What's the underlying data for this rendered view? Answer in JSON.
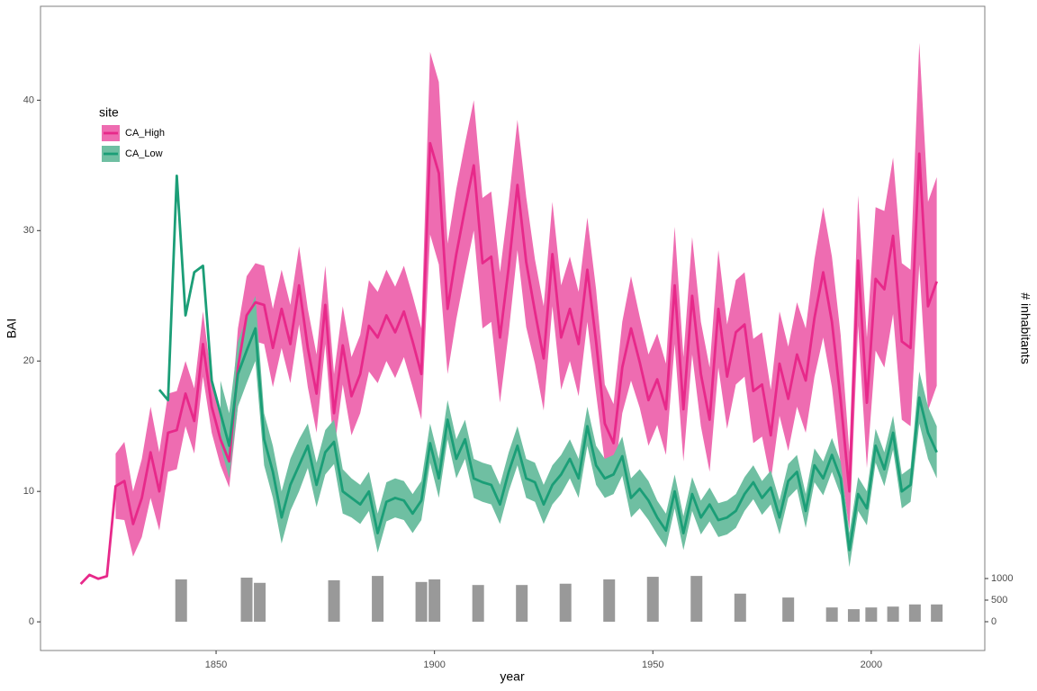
{
  "chart_data": {
    "type": "line",
    "x_label": "year",
    "y_label": "BAI",
    "y2_label": "# inhabitants",
    "legend_title": "site",
    "legend_position": "top-left",
    "grid": false,
    "xlim": [
      1809.8,
      2026
    ],
    "xticks": [
      1850,
      1900,
      1950,
      2000
    ],
    "ylim": [
      -2.2,
      47.2
    ],
    "yticks": [
      0,
      10,
      20,
      30,
      40
    ],
    "y2lim": [
      -667,
      14250
    ],
    "y2ticks": [
      0,
      500,
      1000
    ],
    "x": [
      1819,
      1821,
      1823,
      1825,
      1827,
      1829,
      1831,
      1833,
      1835,
      1837,
      1839,
      1841,
      1843,
      1845,
      1847,
      1849,
      1851,
      1853,
      1855,
      1857,
      1859,
      1861,
      1863,
      1865,
      1867,
      1869,
      1871,
      1873,
      1875,
      1877,
      1879,
      1881,
      1883,
      1885,
      1887,
      1889,
      1891,
      1893,
      1895,
      1897,
      1899,
      1901,
      1903,
      1905,
      1907,
      1909,
      1911,
      1913,
      1915,
      1917,
      1919,
      1921,
      1923,
      1925,
      1927,
      1929,
      1931,
      1933,
      1935,
      1937,
      1939,
      1941,
      1943,
      1945,
      1947,
      1949,
      1951,
      1953,
      1955,
      1957,
      1959,
      1961,
      1963,
      1965,
      1967,
      1969,
      1971,
      1973,
      1975,
      1977,
      1979,
      1981,
      1983,
      1985,
      1987,
      1989,
      1991,
      1993,
      1995,
      1997,
      1999,
      2001,
      2003,
      2005,
      2007,
      2009,
      2011,
      2013,
      2015
    ],
    "series": [
      {
        "name": "CA_High",
        "color": "#e7298a",
        "ribbon_color": "#ee6cb1",
        "values": [
          2.9,
          3.6,
          3.3,
          3.5,
          10.4,
          10.8,
          7.5,
          9.5,
          13.0,
          10.0,
          14.5,
          14.7,
          17.5,
          15.4,
          21.3,
          16.5,
          14.0,
          12.3,
          19.5,
          23.5,
          24.5,
          24.3,
          21.0,
          24.0,
          21.3,
          25.8,
          21.0,
          17.5,
          24.3,
          16.0,
          21.2,
          17.3,
          19.0,
          22.7,
          21.8,
          23.5,
          22.2,
          23.8,
          21.5,
          19.0,
          36.7,
          34.4,
          24.0,
          28.2,
          31.7,
          35.0,
          27.5,
          28.0,
          21.8,
          27.2,
          33.5,
          27.6,
          23.8,
          20.2,
          28.2,
          21.8,
          24.0,
          21.3,
          27.0,
          21.5,
          15.2,
          13.7,
          19.5,
          22.5,
          19.9,
          17.0,
          18.6,
          16.3,
          25.8,
          16.3,
          25.0,
          19.0,
          15.5,
          24.0,
          18.8,
          22.2,
          22.8,
          17.7,
          18.2,
          14.3,
          19.8,
          17.1,
          20.5,
          18.5,
          23.3,
          26.8,
          23.0,
          17.0,
          10.0,
          27.7,
          16.8,
          26.3,
          25.5,
          29.6,
          21.5,
          21.0,
          35.9,
          24.2,
          26.1
        ],
        "lower": [
          null,
          null,
          null,
          null,
          7.9,
          7.8,
          5.0,
          6.5,
          9.5,
          7.0,
          11.5,
          11.7,
          15.0,
          12.9,
          18.8,
          14.5,
          12.0,
          10.3,
          16.5,
          20.5,
          21.5,
          21.3,
          18.0,
          21.0,
          18.3,
          22.8,
          18.0,
          14.5,
          21.3,
          13.0,
          18.2,
          14.3,
          16.0,
          19.2,
          18.3,
          20.0,
          18.7,
          20.3,
          18.0,
          15.5,
          29.7,
          27.4,
          19.0,
          23.2,
          26.7,
          30.0,
          22.5,
          23.0,
          16.8,
          22.2,
          28.5,
          22.6,
          19.8,
          16.2,
          24.2,
          17.8,
          20.0,
          17.3,
          23.0,
          17.5,
          12.2,
          10.7,
          16.0,
          18.5,
          16.4,
          13.5,
          15.1,
          12.8,
          21.3,
          12.3,
          20.5,
          15.0,
          11.5,
          19.5,
          14.8,
          18.2,
          18.8,
          13.7,
          14.2,
          10.8,
          15.8,
          13.1,
          16.5,
          14.5,
          18.8,
          21.8,
          18.0,
          12.0,
          7.0,
          22.7,
          11.8,
          20.8,
          19.5,
          23.6,
          15.5,
          15.0,
          27.4,
          16.2,
          18.1
        ],
        "upper": [
          null,
          null,
          null,
          null,
          12.9,
          13.8,
          10.0,
          12.5,
          16.5,
          13.0,
          17.5,
          17.7,
          20.0,
          17.9,
          23.8,
          18.5,
          16.0,
          14.3,
          22.5,
          26.5,
          27.5,
          27.3,
          24.0,
          27.0,
          24.3,
          28.8,
          24.0,
          20.5,
          27.3,
          19.0,
          24.2,
          20.3,
          22.0,
          26.2,
          25.3,
          27.0,
          25.7,
          27.3,
          25.0,
          22.5,
          43.7,
          41.4,
          29.0,
          33.2,
          36.7,
          40.0,
          32.5,
          33.0,
          26.8,
          32.2,
          38.5,
          32.6,
          27.8,
          24.2,
          32.2,
          25.8,
          28.0,
          25.3,
          31.0,
          25.5,
          18.2,
          16.7,
          23.0,
          26.5,
          23.4,
          20.5,
          22.1,
          19.8,
          30.3,
          20.3,
          29.5,
          23.0,
          19.5,
          28.5,
          22.8,
          26.2,
          26.8,
          21.7,
          22.2,
          17.8,
          23.8,
          21.1,
          24.5,
          22.5,
          27.8,
          31.8,
          28.0,
          22.0,
          13.0,
          32.7,
          21.8,
          31.8,
          31.5,
          35.6,
          27.5,
          27.0,
          44.4,
          32.2,
          34.1
        ]
      },
      {
        "name": "CA_Low",
        "color": "#1b9e77",
        "ribbon_color": "#6fbfa2",
        "values": [
          null,
          null,
          null,
          null,
          null,
          null,
          null,
          null,
          null,
          17.8,
          17.0,
          34.2,
          23.5,
          26.8,
          27.3,
          18.5,
          16.0,
          13.5,
          19.0,
          20.8,
          22.5,
          14.0,
          11.5,
          8.0,
          10.5,
          12.0,
          13.5,
          10.5,
          13.0,
          13.8,
          10.0,
          9.5,
          9.0,
          10.0,
          6.8,
          9.2,
          9.5,
          9.3,
          8.3,
          9.3,
          13.7,
          11.0,
          15.5,
          12.5,
          14.0,
          11.0,
          10.7,
          10.5,
          9.0,
          11.5,
          13.5,
          11.0,
          10.7,
          9.0,
          10.5,
          11.3,
          12.5,
          11.0,
          15.0,
          12.0,
          11.0,
          11.3,
          12.7,
          9.5,
          10.2,
          9.3,
          8.0,
          7.0,
          10.0,
          6.8,
          9.8,
          8.0,
          9.0,
          7.8,
          8.0,
          8.5,
          9.8,
          10.7,
          9.5,
          10.3,
          8.0,
          10.8,
          11.5,
          8.5,
          12.0,
          11.0,
          12.8,
          11.0,
          5.5,
          9.8,
          8.7,
          13.5,
          11.7,
          14.5,
          10.0,
          10.5,
          17.2,
          14.5,
          13.0
        ],
        "lower": [
          null,
          null,
          null,
          null,
          null,
          null,
          null,
          null,
          null,
          null,
          null,
          null,
          null,
          null,
          null,
          null,
          13.5,
          11.0,
          16.5,
          18.3,
          20.0,
          12.0,
          9.5,
          6.0,
          8.5,
          10.0,
          11.8,
          8.8,
          11.3,
          12.1,
          8.3,
          8.0,
          7.5,
          8.5,
          5.3,
          7.7,
          8.0,
          7.8,
          6.8,
          7.8,
          12.2,
          9.5,
          14.0,
          11.0,
          12.5,
          9.5,
          9.2,
          9.0,
          7.5,
          10.0,
          12.0,
          9.5,
          9.2,
          7.5,
          9.0,
          9.8,
          11.0,
          9.5,
          13.5,
          10.5,
          9.5,
          9.8,
          11.2,
          8.0,
          8.7,
          7.8,
          6.7,
          5.7,
          8.7,
          5.5,
          8.5,
          6.7,
          7.7,
          6.5,
          6.7,
          7.2,
          8.5,
          9.4,
          8.2,
          9.0,
          6.7,
          9.5,
          10.2,
          7.2,
          10.7,
          9.7,
          11.5,
          9.7,
          4.2,
          8.5,
          7.4,
          12.2,
          10.4,
          13.2,
          8.7,
          9.2,
          15.2,
          12.5,
          11.0
        ],
        "upper": [
          null,
          null,
          null,
          null,
          null,
          null,
          null,
          null,
          null,
          null,
          null,
          null,
          null,
          null,
          null,
          null,
          18.5,
          16.0,
          21.5,
          23.3,
          25.0,
          16.0,
          13.5,
          10.0,
          12.5,
          14.0,
          15.2,
          12.2,
          14.7,
          15.5,
          11.7,
          11.0,
          10.5,
          11.5,
          8.3,
          10.7,
          11.0,
          10.8,
          9.8,
          10.8,
          15.2,
          12.5,
          17.0,
          14.0,
          15.5,
          12.5,
          12.2,
          12.0,
          10.5,
          13.0,
          15.0,
          12.5,
          12.2,
          10.5,
          12.0,
          12.8,
          14.0,
          12.5,
          16.5,
          13.5,
          12.5,
          12.8,
          14.2,
          11.0,
          11.7,
          10.8,
          9.3,
          8.3,
          11.3,
          8.1,
          11.1,
          9.3,
          10.3,
          9.1,
          9.3,
          9.8,
          11.1,
          12.0,
          10.8,
          11.6,
          9.3,
          12.1,
          12.8,
          9.8,
          13.3,
          12.3,
          14.1,
          12.3,
          6.8,
          11.1,
          10.0,
          14.8,
          13.0,
          15.8,
          11.3,
          11.8,
          19.2,
          16.5,
          15.0
        ]
      }
    ],
    "bar_series": {
      "axis": "y2",
      "color": "#999999",
      "x": [
        1842,
        1857,
        1860,
        1877,
        1887,
        1897,
        1900,
        1910,
        1920,
        1930,
        1940,
        1950,
        1960,
        1970,
        1981,
        1991,
        1996,
        2000,
        2005,
        2010,
        2015
      ],
      "values": [
        980,
        1020,
        900,
        960,
        1060,
        920,
        980,
        850,
        850,
        880,
        980,
        1040,
        1060,
        650,
        560,
        330,
        290,
        330,
        350,
        400,
        400
      ]
    }
  }
}
